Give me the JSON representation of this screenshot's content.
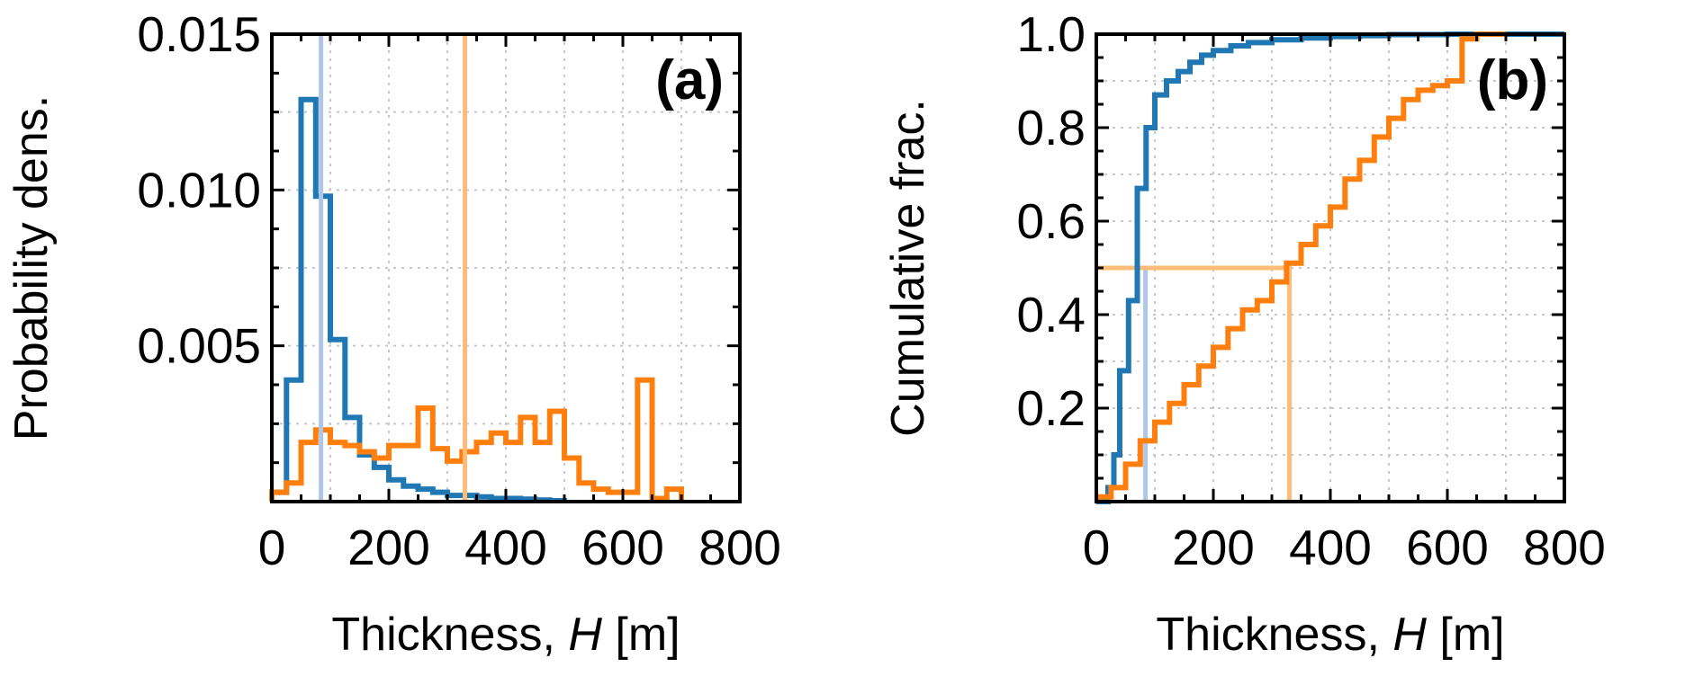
{
  "colors": {
    "blue": "#1f77b4",
    "orange": "#ff7f0e",
    "light_blue": "#aec7e8",
    "light_orange": "#ffbb78"
  },
  "chart_data": [
    {
      "type": "histogram",
      "panel_label": "(a)",
      "xlabel_prefix": "Thickness, ",
      "xlabel_symbol": "H",
      "xlabel_suffix": " [m]",
      "ylabel": "Probability dens.",
      "xlim": [
        0,
        800
      ],
      "ylim": [
        0,
        0.015
      ],
      "xticks": [
        0,
        200,
        400,
        600,
        800
      ],
      "xtick_labels": [
        "0",
        "200",
        "400",
        "600",
        "800"
      ],
      "yticks": [
        0.005,
        0.01,
        0.015
      ],
      "ytick_labels": [
        "0.005",
        "0.010",
        "0.015"
      ],
      "grid": true,
      "series": [
        {
          "color": "blue",
          "bin_edges": [
            0,
            25,
            50,
            75,
            100,
            125,
            150,
            175,
            200,
            225,
            250,
            275,
            300,
            325,
            350,
            375,
            400,
            425,
            450,
            475,
            500
          ],
          "values": [
            0.0003,
            0.0039,
            0.0129,
            0.0098,
            0.0052,
            0.0027,
            0.0015,
            0.0011,
            0.0007,
            0.0005,
            0.0004,
            0.0003,
            0.0002,
            0.0002,
            0.00015,
            0.0001,
            0.0001,
            8e-05,
            5e-05,
            3e-05
          ]
        },
        {
          "color": "orange",
          "bin_edges": [
            0,
            25,
            50,
            75,
            100,
            125,
            150,
            175,
            200,
            225,
            250,
            275,
            300,
            325,
            350,
            375,
            400,
            425,
            450,
            475,
            500,
            525,
            550,
            575,
            600,
            625,
            650,
            675,
            700
          ],
          "values": [
            0.0003,
            0.0006,
            0.0019,
            0.0023,
            0.0019,
            0.0018,
            0.0016,
            0.0014,
            0.0018,
            0.0018,
            0.003,
            0.0017,
            0.0013,
            0.0016,
            0.0019,
            0.0022,
            0.0019,
            0.0027,
            0.0019,
            0.0029,
            0.0014,
            0.0006,
            0.0004,
            0.0003,
            0.0003,
            0.0039,
            0.0001,
            0.0004
          ]
        }
      ],
      "median_lines": [
        {
          "color": "light_blue",
          "x": 84
        },
        {
          "color": "light_orange",
          "x": 330
        }
      ]
    },
    {
      "type": "line",
      "panel_label": "(b)",
      "xlabel_prefix": "Thickness, ",
      "xlabel_symbol": "H",
      "xlabel_suffix": " [m]",
      "ylabel": "Cumulative frac.",
      "xlim": [
        0,
        800
      ],
      "ylim": [
        0,
        1.0
      ],
      "xticks": [
        0,
        200,
        400,
        600,
        800
      ],
      "xtick_labels": [
        "0",
        "200",
        "400",
        "600",
        "800"
      ],
      "yticks": [
        0.2,
        0.4,
        0.6,
        0.8,
        1.0
      ],
      "ytick_labels": [
        "0.2",
        "0.4",
        "0.6",
        "0.8",
        "1.0"
      ],
      "grid": true,
      "series": [
        {
          "color": "blue",
          "step_x": [
            0,
            20,
            30,
            40,
            55,
            70,
            85,
            100,
            120,
            140,
            160,
            180,
            200,
            230,
            260,
            300,
            350,
            400,
            450,
            500,
            600,
            800
          ],
          "y": [
            0.0,
            0.03,
            0.1,
            0.28,
            0.43,
            0.67,
            0.8,
            0.87,
            0.9,
            0.92,
            0.94,
            0.955,
            0.965,
            0.975,
            0.982,
            0.988,
            0.992,
            0.995,
            0.997,
            0.999,
            1.0
          ]
        },
        {
          "color": "orange",
          "step_x": [
            0,
            25,
            50,
            75,
            100,
            125,
            150,
            175,
            200,
            225,
            250,
            275,
            300,
            325,
            350,
            375,
            400,
            425,
            450,
            475,
            500,
            525,
            550,
            575,
            600,
            625,
            650,
            700
          ],
          "y": [
            0.01,
            0.03,
            0.08,
            0.13,
            0.17,
            0.21,
            0.25,
            0.29,
            0.33,
            0.37,
            0.41,
            0.43,
            0.47,
            0.51,
            0.55,
            0.59,
            0.63,
            0.69,
            0.73,
            0.78,
            0.82,
            0.86,
            0.88,
            0.89,
            0.9,
            0.99,
            1.0
          ]
        }
      ],
      "median_lines": [
        {
          "color": "light_blue",
          "x": 84,
          "y": 0.5
        },
        {
          "color": "light_orange",
          "x": 330,
          "y": 0.5
        }
      ]
    }
  ]
}
